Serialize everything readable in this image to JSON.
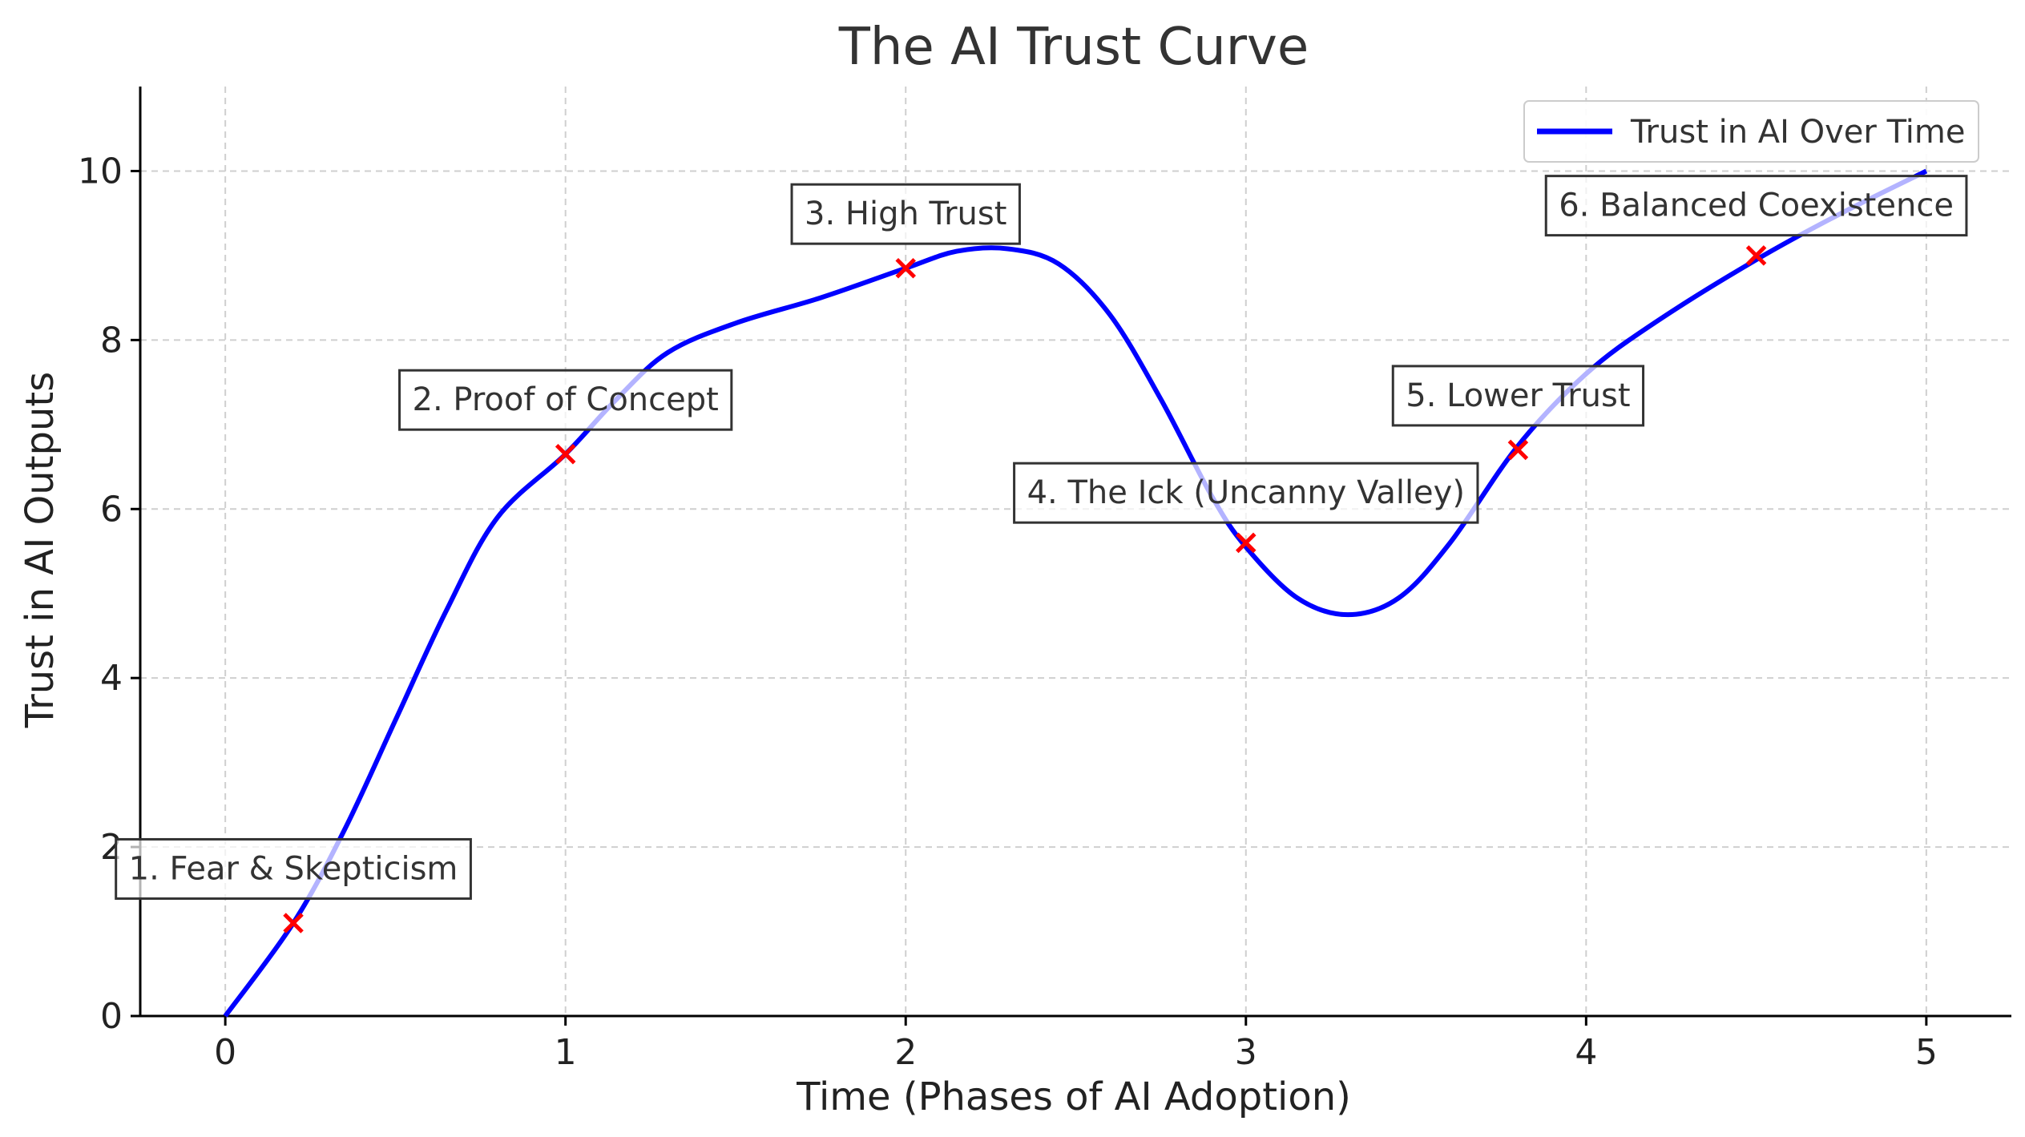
{
  "chart_data": {
    "type": "line",
    "title": "The AI Trust Curve",
    "xlabel": "Time (Phases of AI Adoption)",
    "ylabel": "Trust in AI Outputs",
    "xlim": [
      -0.25,
      5.25
    ],
    "ylim": [
      0,
      11
    ],
    "xticks": [
      0,
      1,
      2,
      3,
      4,
      5
    ],
    "yticks": [
      0,
      2,
      4,
      6,
      8,
      10
    ],
    "grid": true,
    "legend_placement": "top-right",
    "series": [
      {
        "name": "Trust in AI Over Time",
        "color": "#0000ff",
        "x": [
          0,
          0.2,
          0.35,
          0.5,
          0.65,
          0.8,
          1.0,
          1.15,
          1.3,
          1.5,
          1.75,
          2.0,
          2.15,
          2.3,
          2.45,
          2.6,
          2.75,
          2.9,
          3.0,
          3.15,
          3.3,
          3.45,
          3.6,
          3.8,
          4.0,
          4.2,
          4.5,
          4.75,
          5.0
        ],
        "y": [
          0,
          1.1,
          2.2,
          3.5,
          4.8,
          5.9,
          6.65,
          7.3,
          7.85,
          8.2,
          8.5,
          8.85,
          9.05,
          9.08,
          8.9,
          8.3,
          7.3,
          6.15,
          5.55,
          4.95,
          4.75,
          4.95,
          5.6,
          6.75,
          7.6,
          8.2,
          8.95,
          9.5,
          10.0
        ]
      }
    ],
    "annotations": [
      {
        "label": "1. Fear & Skepticism",
        "x": 0.2,
        "y": 1.1,
        "label_y": 1.75
      },
      {
        "label": "2. Proof of Concept",
        "x": 1.0,
        "y": 6.65,
        "label_y": 7.3
      },
      {
        "label": "3. High Trust",
        "x": 2.0,
        "y": 8.85,
        "label_y": 9.5
      },
      {
        "label": "4. The Ick (Uncanny Valley)",
        "x": 3.0,
        "y": 5.6,
        "label_y": 6.2
      },
      {
        "label": "5. Lower Trust",
        "x": 3.8,
        "y": 6.7,
        "label_y": 7.35
      },
      {
        "label": "6. Balanced Coexistence",
        "x": 4.5,
        "y": 9.0,
        "label_y": 9.6
      }
    ],
    "marker_color": "#ff0000"
  }
}
